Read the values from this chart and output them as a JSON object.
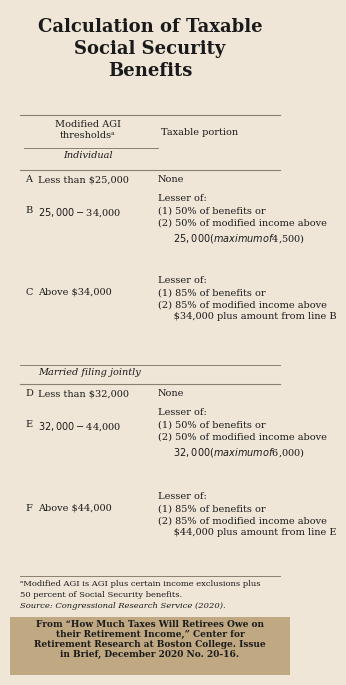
{
  "title": "Calculation of Taxable\nSocial Security\nBenefits",
  "bg_color": "#f0e6d8",
  "title_color": "#1a1a1a",
  "text_color": "#1a1a1a",
  "col1_header": "Modified AGI\nthresholdsᵃ",
  "col2_header": "Taxable portion",
  "individual_label": "Individual",
  "married_label": "Married filing jointly",
  "rows_individual": [
    {
      "letter": "A",
      "threshold": "Less than $25,000",
      "taxable": "None"
    },
    {
      "letter": "B",
      "threshold": "$25,000-$34,000",
      "taxable": "Lesser of:\n(1) 50% of benefits or\n(2) 50% of modified income above\n     $25,000 (maximum of $4,500)"
    },
    {
      "letter": "C",
      "threshold": "Above $34,000",
      "taxable": "Lesser of:\n(1) 85% of benefits or\n(2) 85% of modified income above\n     $34,000 plus amount from line B"
    }
  ],
  "rows_married": [
    {
      "letter": "D",
      "threshold": "Less than $32,000",
      "taxable": "None"
    },
    {
      "letter": "E",
      "threshold": "$32,000-$44,000",
      "taxable": "Lesser of:\n(1) 50% of benefits or\n(2) 50% of modified income above\n     $32,000 (maximum of $6,000)"
    },
    {
      "letter": "F",
      "threshold": "Above $44,000",
      "taxable": "Lesser of:\n(1) 85% of benefits or\n(2) 85% of modified income above\n     $44,000 plus amount from line E"
    }
  ],
  "footnote_a": "ᵃModified AGI is AGI plus certain income exclusions plus",
  "footnote_b": "50 percent of Social Security benefits.",
  "footnote_c": "Source: Congressional Research Service (2020).",
  "source_line1": "From “How Much Taxes Will Retirees Owe on",
  "source_line2": "their Retirement Income,” Center for",
  "source_line3": "Retirement Research at Boston College. Issue",
  "source_line4": "in Brief, December 2020 No. 20-16.",
  "source_bg": "#c0a882",
  "line_color": "#888070"
}
